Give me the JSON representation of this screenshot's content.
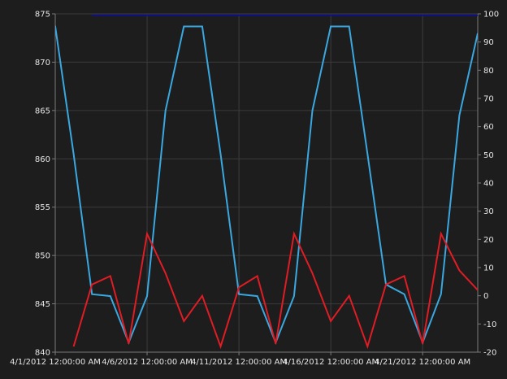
{
  "chart_data": {
    "type": "line",
    "title": "",
    "xlabel": "",
    "ylabel": "",
    "y2label": "",
    "grid": true,
    "legend": "none",
    "x_tick_labels": [
      "4/1/2012 12:00:00 AM",
      "4/6/2012 12:00:00 AM",
      "4/11/2012 12:00:00 AM",
      "4/16/2012 12:00:00 AM",
      "4/21/2012 12:00:00 AM"
    ],
    "x_tick_values": [
      0,
      5,
      10,
      15,
      20
    ],
    "xlim": [
      0,
      23
    ],
    "ylim": [
      840,
      875
    ],
    "y_ticks": [
      840,
      845,
      850,
      855,
      860,
      865,
      870,
      875
    ],
    "y2lim": [
      -20,
      100
    ],
    "y2_ticks": [
      -20,
      -10,
      0,
      10,
      20,
      30,
      40,
      50,
      60,
      70,
      80,
      90,
      100
    ],
    "series": [
      {
        "axis": "left",
        "color": "#3aa8e0",
        "x": [
          -1,
          0,
          1,
          2,
          3,
          4,
          5,
          6,
          7,
          8,
          9,
          10,
          11,
          12,
          13,
          14,
          15,
          16,
          17,
          18,
          19,
          20,
          21,
          22,
          23
        ],
        "values": [
          873.7,
          873.7,
          860.5,
          846.0,
          845.8,
          841.0,
          845.8,
          865.0,
          873.7,
          873.7,
          860.5,
          846.0,
          845.8,
          841.0,
          845.8,
          865.0,
          873.7,
          873.7,
          860.5,
          847.0,
          846.0,
          841.0,
          846.0,
          864.5,
          873.0
        ]
      },
      {
        "axis": "right",
        "color": "#e01c24",
        "x": [
          1,
          2,
          3,
          4,
          5,
          6,
          7,
          8,
          9,
          10,
          11,
          12,
          13,
          14,
          15,
          16,
          17,
          18,
          19,
          20,
          21,
          22,
          23
        ],
        "values": [
          -18,
          4,
          7,
          -17,
          22,
          8,
          -9,
          0,
          -18,
          3,
          7,
          -17,
          22,
          8,
          -9,
          0,
          -18,
          4,
          7,
          -17,
          22,
          9,
          2
        ]
      },
      {
        "axis": "right",
        "color": "#0f0f8a",
        "x": [
          2,
          23
        ],
        "values": [
          99.5,
          99.5
        ]
      }
    ]
  }
}
